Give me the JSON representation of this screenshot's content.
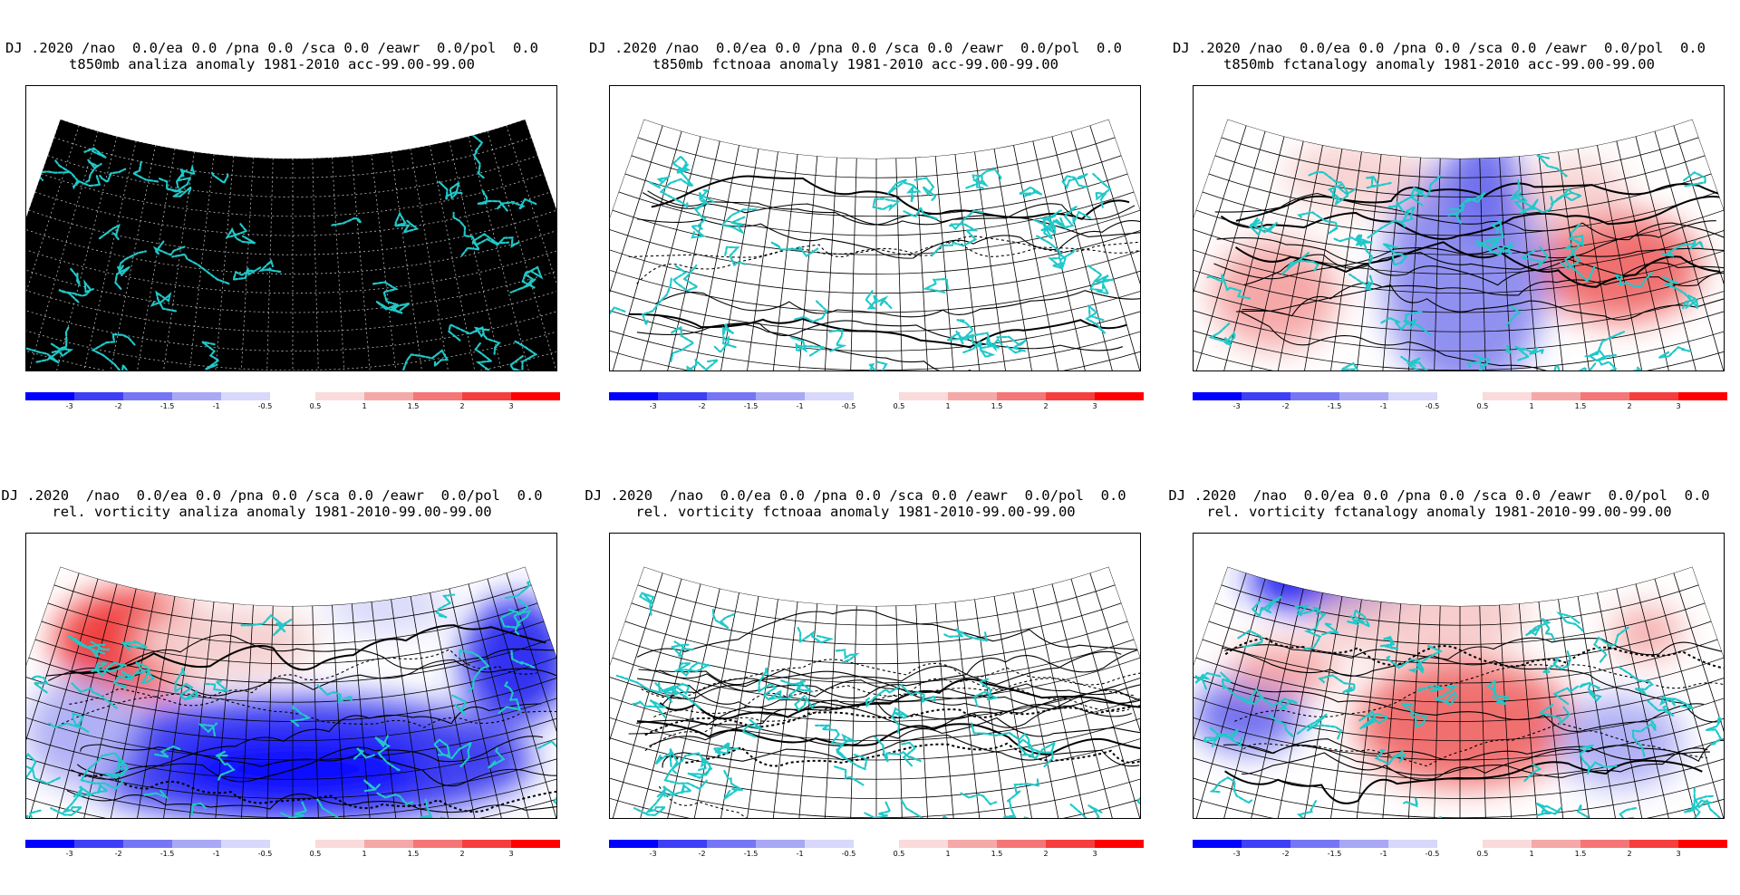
{
  "common": {
    "title_line1_top": "DJ .2020 /nao  0.0/ea 0.0 /pna 0.0 /sca 0.0 /eawr  0.0/pol  0.0",
    "title_line1_bottom": "DJ .2020  /nao  0.0/ea 0.0 /pna 0.0 /sca 0.0 /eawr  0.0/pol  0.0",
    "colors": {
      "neg": [
        "#0000ff",
        "#3f3ff5",
        "#7676f5",
        "#a8a8f5",
        "#d8d8fa"
      ],
      "pos": [
        "#fadada",
        "#f5a8a8",
        "#f57676",
        "#f53f3f",
        "#ff0000"
      ],
      "coastline": "#20c8c8",
      "map_background_first": "#000000"
    },
    "legend": {
      "neg_labels": [
        "-3",
        "-2",
        "-1.5",
        "-1",
        "-0.5"
      ],
      "pos_labels": [
        "0.5",
        "1",
        "1.5",
        "2",
        "3"
      ]
    }
  },
  "panels": [
    {
      "id": "p1",
      "title2": "t850mb analiza anomaly 1981-2010 acc-99.00-99.00",
      "style": "black"
    },
    {
      "id": "p2",
      "title2": "t850mb fctnoaa anomaly 1981-2010 acc-99.00-99.00",
      "style": "contour"
    },
    {
      "id": "p3",
      "title2": "t850mb fctanalogy anomaly 1981-2010 acc-99.00-99.00",
      "style": "shaded"
    },
    {
      "id": "p4",
      "title2": "rel. vorticity analiza anomaly 1981-2010-99.00-99.00",
      "style": "shaded"
    },
    {
      "id": "p5",
      "title2": "rel. vorticity fctnoaa anomaly 1981-2010-99.00-99.00",
      "style": "contour"
    },
    {
      "id": "p6",
      "title2": "rel. vorticity fctanalogy anomaly 1981-2010-99.00-99.00",
      "style": "shaded"
    }
  ]
}
